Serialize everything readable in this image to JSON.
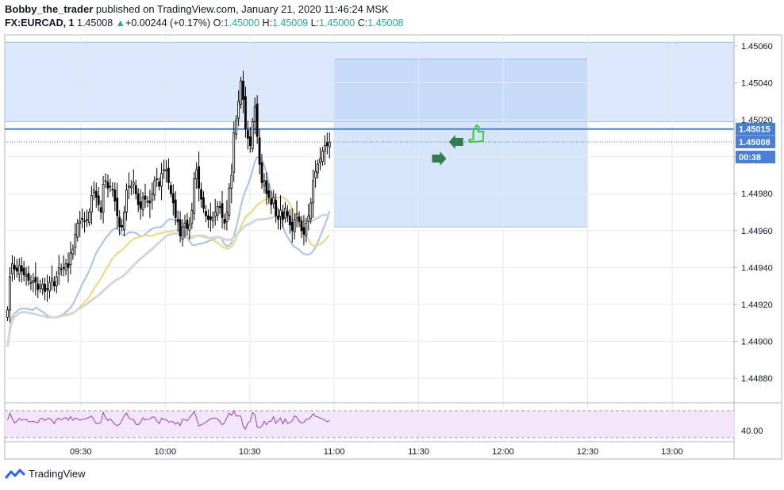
{
  "header": {
    "author": "Bobby_the_trader",
    "published_text": "published on TradingView.com, January 21, 2020 11:46:24 MSK",
    "symbol": "FX:EURCAD, 1",
    "last": "1.45008",
    "change": "+0.00244 (+0.17%)",
    "o_label": "O:",
    "o_value": "1.45000",
    "h_label": "H:",
    "h_value": "1.45009",
    "l_label": "L:",
    "l_value": "1.45000",
    "c_label": "C:",
    "c_value": "1.45008",
    "up_arrow": "▲"
  },
  "footer": {
    "brand": "TradingView",
    "logo_icon": "tradingview-logo-icon"
  },
  "colors": {
    "up_candle": "#ffffff",
    "down_candle": "#000000",
    "candle_stroke": "#000000",
    "ma_blue": "#a4c2ea",
    "ma_yellow": "#f2d47e",
    "ma_gray": "#d6d6d6",
    "zone_fill": "#cfe0fa",
    "zone_fill_dark": "#b7cff5",
    "level_line": "#4a7fd6",
    "dotted_line": "#4a7fd6",
    "rsi_fill": "#f3e6fb",
    "rsi_line": "#a03cc0",
    "arrow": "#2f7d4e",
    "thumb": "#2fd02f"
  },
  "chart_data": {
    "type": "candlestick",
    "symbol": "FX:EURCAD",
    "timeframe": "1",
    "ylim": [
      1.44868,
      1.45066
    ],
    "y_ticks": [
      "1.45060",
      "1.45040",
      "1.45020",
      "1.45000",
      "1.44980",
      "1.44960",
      "1.44940",
      "1.44920",
      "1.44900",
      "1.44880"
    ],
    "x_ticks": [
      "09:30",
      "10:00",
      "10:30",
      "11:00",
      "11:30",
      "12:00",
      "12:30",
      "13:00"
    ],
    "price_labels": [
      {
        "text": "1.45015",
        "value": 1.45015,
        "kind": "level"
      },
      {
        "text": "1.45008",
        "value": 1.45008,
        "kind": "last"
      },
      {
        "text": "1",
        "value": 1.45,
        "kind": "partial"
      },
      {
        "text": "00:38",
        "kind": "countdown"
      }
    ],
    "horizontal_level": 1.45015,
    "last_price": 1.45008,
    "zones": [
      {
        "from_time": "09:03",
        "to_time": "13:22",
        "low": 1.45019,
        "high": 1.45062
      },
      {
        "from_time": "11:00",
        "to_time": "12:30",
        "low": 1.44962,
        "high": 1.45053
      }
    ],
    "closes": [
      1.44917,
      1.44935,
      1.44942,
      1.44939,
      1.44938,
      1.44941,
      1.44938,
      1.44936,
      1.44936,
      1.44933,
      1.44932,
      1.44933,
      1.44932,
      1.44928,
      1.4493,
      1.44931,
      1.44927,
      1.44928,
      1.44932,
      1.44934,
      1.4493,
      1.44935,
      1.4494,
      1.44939,
      1.4494,
      1.44942,
      1.4494,
      1.44948,
      1.4495,
      1.44958,
      1.44964,
      1.44965,
      1.44966,
      1.44965,
      1.44966,
      1.4497,
      1.44979,
      1.44982,
      1.44978,
      1.44974,
      1.4497,
      1.44985,
      1.44987,
      1.44983,
      1.44984,
      1.44982,
      1.44976,
      1.44968,
      1.44962,
      1.44962,
      1.4497,
      1.44982,
      1.44984,
      1.44984,
      1.44986,
      1.4498,
      1.44974,
      1.44972,
      1.44978,
      1.44977,
      1.44976,
      1.44975,
      1.4498,
      1.44987,
      1.44988,
      1.44984,
      1.44991,
      1.44993,
      1.44993,
      1.44986,
      1.4498,
      1.44975,
      1.44967,
      1.44965,
      1.44957,
      1.44962,
      1.44964,
      1.44961,
      1.44963,
      1.44971,
      1.44988,
      1.44993,
      1.44983,
      1.44977,
      1.44972,
      1.44968,
      1.44966,
      1.44966,
      1.44967,
      1.4497,
      1.44973,
      1.44973,
      1.44967,
      1.44964,
      1.4497,
      1.44983,
      1.4499,
      1.45013,
      1.4502,
      1.4503,
      1.45041,
      1.45031,
      1.45015,
      1.4501,
      1.45006,
      1.45019,
      1.45027,
      1.45011,
      1.44996,
      1.44986,
      1.44987,
      1.4498,
      1.44978,
      1.44974,
      1.44978,
      1.44968,
      1.44966,
      1.44971,
      1.44966,
      1.44972,
      1.44968,
      1.44963,
      1.4496,
      1.44966,
      1.44969,
      1.44965,
      1.4496,
      1.44958,
      1.44964,
      1.44968,
      1.44975,
      1.44987,
      1.44992,
      1.44996,
      1.44999,
      1.45003,
      1.45006,
      1.45006,
      1.45008
    ],
    "rsi": {
      "upper_band": 70,
      "lower_band": 40,
      "visible_tick": "40.00"
    },
    "annotations": [
      "green-arrow-right-icon",
      "green-arrow-left-icon",
      "thumbs-up-icon"
    ],
    "grid": true
  }
}
